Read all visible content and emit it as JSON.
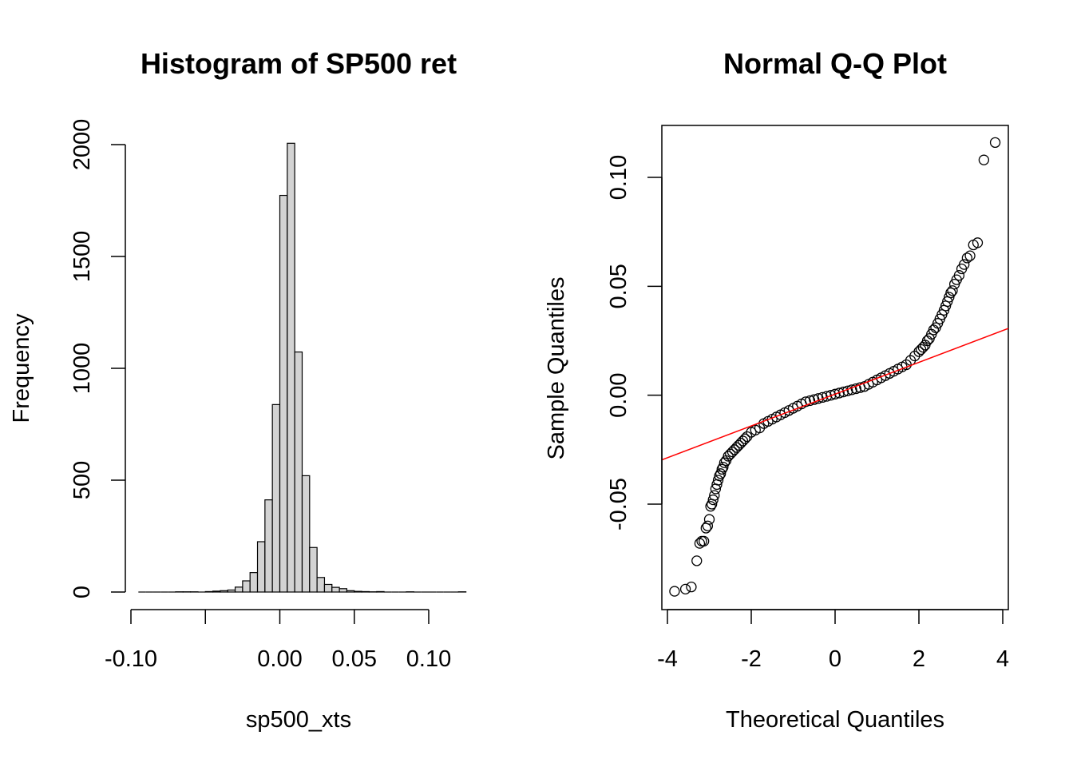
{
  "chart_data": [
    {
      "type": "bar",
      "subtype": "histogram",
      "title": "Histogram of SP500 ret",
      "xlabel": "sp500_xts",
      "ylabel": "Frequency",
      "xlim": [
        -0.1,
        0.12
      ],
      "ylim": [
        0,
        2000
      ],
      "x_ticks": [
        -0.1,
        -0.05,
        0.0,
        0.05,
        0.1
      ],
      "x_tick_labels": [
        "-0.10",
        "",
        "0.00",
        "0.05",
        "0.10"
      ],
      "y_ticks": [
        0,
        500,
        1000,
        1500,
        2000
      ],
      "y_tick_labels": [
        "0",
        "500",
        "1000",
        "1500",
        "2000"
      ],
      "bin_width": 0.005,
      "bin_start": -0.095,
      "values": [
        0,
        0,
        0,
        0,
        0,
        1,
        1,
        1,
        0,
        2,
        4,
        6,
        9,
        22,
        50,
        87,
        225,
        412,
        838,
        1773,
        2006,
        1073,
        520,
        199,
        65,
        34,
        21,
        15,
        6,
        3,
        2,
        1,
        2,
        0,
        0,
        0,
        1,
        0,
        0,
        0,
        0,
        0,
        0,
        1
      ],
      "bar_fill": "#d3d3d3",
      "bar_stroke": "#000000",
      "grid": false,
      "legend": "none"
    },
    {
      "type": "scatter",
      "subtype": "qq",
      "title": "Normal Q-Q Plot",
      "xlabel": "Theoretical Quantiles",
      "ylabel": "Sample Quantiles",
      "xlim": [
        -4,
        4
      ],
      "ylim": [
        -0.095,
        0.12
      ],
      "x_ticks": [
        -4,
        -2,
        0,
        2,
        4
      ],
      "x_tick_labels": [
        "-4",
        "-2",
        "0",
        "2",
        "4"
      ],
      "y_ticks": [
        -0.05,
        0.0,
        0.05,
        0.1
      ],
      "y_tick_labels": [
        "-0.05",
        "0.00",
        "0.05",
        "0.10"
      ],
      "points": {
        "x": [
          -3.83,
          -3.57,
          -3.43,
          -3.3,
          -3.23,
          -3.18,
          -3.13,
          -3.08,
          -3.04,
          -3.0,
          -2.97,
          -2.94,
          -2.91,
          -2.88,
          -2.85,
          -2.82,
          -2.79,
          -2.76,
          -2.73,
          -2.7,
          -2.67,
          -2.64,
          -2.6,
          -2.55,
          -2.5,
          -2.45,
          -2.4,
          -2.35,
          -2.3,
          -2.25,
          -2.2,
          -2.15,
          -2.1,
          -2.0,
          -1.9,
          -1.8,
          -1.7,
          -1.6,
          -1.5,
          -1.4,
          -1.3,
          -1.2,
          -1.1,
          -1.0,
          -0.9,
          -0.8,
          -0.7,
          -0.6,
          -0.5,
          -0.4,
          -0.3,
          -0.2,
          -0.1,
          0.0,
          0.1,
          0.2,
          0.3,
          0.4,
          0.5,
          0.6,
          0.7,
          0.8,
          0.9,
          1.0,
          1.1,
          1.2,
          1.3,
          1.4,
          1.5,
          1.6,
          1.7,
          1.8,
          1.9,
          2.0,
          2.05,
          2.1,
          2.15,
          2.2,
          2.25,
          2.3,
          2.35,
          2.4,
          2.45,
          2.5,
          2.55,
          2.6,
          2.64,
          2.68,
          2.72,
          2.76,
          2.8,
          2.85,
          2.9,
          2.96,
          3.02,
          3.08,
          3.15,
          3.22,
          3.3,
          3.4,
          3.55,
          3.82
        ],
        "y": [
          -0.09,
          -0.089,
          -0.088,
          -0.076,
          -0.068,
          -0.067,
          -0.067,
          -0.061,
          -0.06,
          -0.057,
          -0.051,
          -0.05,
          -0.048,
          -0.046,
          -0.043,
          -0.041,
          -0.039,
          -0.037,
          -0.036,
          -0.034,
          -0.033,
          -0.031,
          -0.03,
          -0.028,
          -0.027,
          -0.026,
          -0.025,
          -0.024,
          -0.023,
          -0.022,
          -0.021,
          -0.02,
          -0.019,
          -0.017,
          -0.016,
          -0.015,
          -0.013,
          -0.012,
          -0.011,
          -0.01,
          -0.009,
          -0.008,
          -0.007,
          -0.006,
          -0.005,
          -0.004,
          -0.003,
          -0.0025,
          -0.002,
          -0.0015,
          -0.001,
          -0.0005,
          0.0,
          0.0005,
          0.001,
          0.0015,
          0.002,
          0.0025,
          0.003,
          0.0035,
          0.004,
          0.005,
          0.006,
          0.007,
          0.008,
          0.009,
          0.01,
          0.011,
          0.012,
          0.013,
          0.014,
          0.016,
          0.018,
          0.02,
          0.021,
          0.022,
          0.023,
          0.025,
          0.026,
          0.028,
          0.03,
          0.031,
          0.033,
          0.035,
          0.037,
          0.039,
          0.041,
          0.043,
          0.045,
          0.047,
          0.048,
          0.051,
          0.053,
          0.055,
          0.058,
          0.06,
          0.063,
          0.064,
          0.069,
          0.07,
          0.108,
          0.116
        ]
      },
      "reference_line": {
        "intercept": 0.0005,
        "slope": 0.0073,
        "color": "#ff0000"
      },
      "point_color": "#000000",
      "box": true,
      "grid": false,
      "legend": "none"
    }
  ]
}
